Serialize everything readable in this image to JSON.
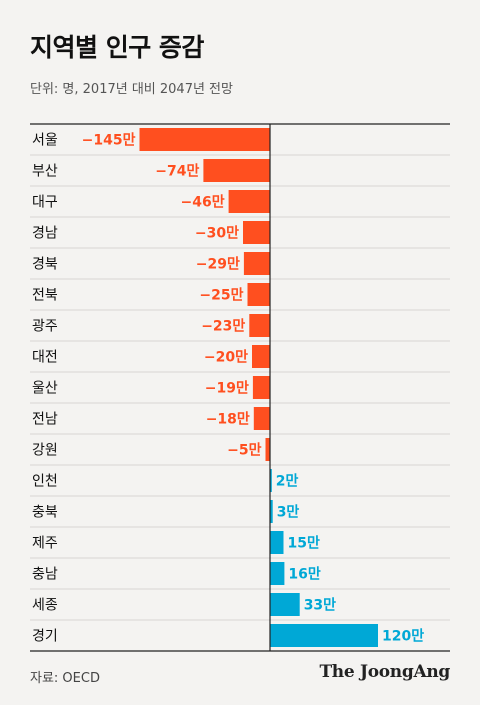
{
  "title": "지역별 인구 증감",
  "subtitle": "단위: 명, 2017년 대비 2047년 전망",
  "source": "자료: OECD",
  "logo": "The JoongAng",
  "colors": {
    "negative": "#ff4f1f",
    "positive": "#00a8d6"
  },
  "chart_data": {
    "type": "bar",
    "orientation": "horizontal",
    "categories": [
      "서울",
      "부산",
      "대구",
      "경남",
      "경북",
      "전북",
      "광주",
      "대전",
      "울산",
      "전남",
      "강원",
      "인천",
      "충북",
      "제주",
      "충남",
      "세종",
      "경기"
    ],
    "values": [
      -145,
      -74,
      -46,
      -30,
      -29,
      -25,
      -23,
      -20,
      -19,
      -18,
      -5,
      2,
      3,
      15,
      16,
      33,
      120
    ],
    "value_labels": [
      "−145만",
      "−74만",
      "−46만",
      "−30만",
      "−29만",
      "−25만",
      "−23만",
      "−20만",
      "−19만",
      "−18만",
      "−5만",
      "2만",
      "3만",
      "15만",
      "16만",
      "33만",
      "120만"
    ],
    "unit": "만",
    "title": "지역별 인구 증감",
    "subtitle": "단위: 명, 2017년 대비 2047년 전망",
    "grid": false
  }
}
